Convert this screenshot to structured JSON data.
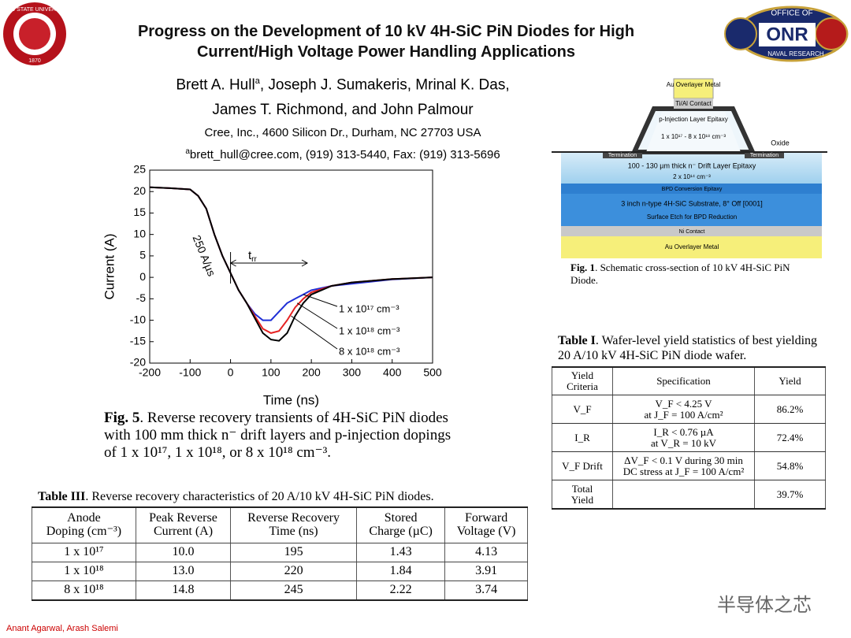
{
  "header": {
    "title": [
      "Progress on the Development of 10 kV 4H-SiC PiN Diodes for High",
      "Current/High Voltage Power Handling Applications"
    ],
    "authors_line1": [
      "Brett A. Hull",
      "a",
      ", Joseph J. Sumakeris, Mrinal K. Das,"
    ],
    "authors_line2": "James T. Richmond, and John Palmour",
    "affiliation": "Cree, Inc., 4600 Silicon Dr., Durham, NC 27703 USA",
    "email": [
      "a",
      "brett_hull@cree.com, (919) 313-5440, Fax: (919) 313-5696"
    ]
  },
  "logos": {
    "left": [
      "OHIO STATE UNIVERSITY",
      "1870"
    ],
    "right": [
      "OFFICE OF",
      "ONR",
      "NAVAL RESEARCH"
    ]
  },
  "chart_data": {
    "type": "line",
    "xlabel": "Time (ns)",
    "ylabel": "Current (A)",
    "x": [
      -200,
      -150,
      -100,
      -80,
      -60,
      -40,
      -20,
      0,
      20,
      40,
      60,
      80,
      100,
      120,
      140,
      160,
      180,
      200,
      250,
      300,
      400,
      500
    ],
    "series": [
      {
        "name": "1 x 10¹⁷ cm⁻³",
        "color": "#1f2fd6",
        "values": [
          21,
          20.8,
          20.5,
          19,
          16,
          10,
          5,
          1,
          -3,
          -6,
          -8.5,
          -10,
          -10,
          -8,
          -6,
          -5,
          -4,
          -3,
          -2,
          -1.5,
          -0.5,
          0
        ]
      },
      {
        "name": "1 x 10¹⁸ cm⁻³",
        "color": "#e52222",
        "values": [
          21,
          20.8,
          20.5,
          19,
          16,
          10,
          5,
          1,
          -3,
          -6,
          -9,
          -12,
          -13,
          -12.5,
          -10,
          -7,
          -5,
          -3.5,
          -2,
          -1.2,
          -0.4,
          0
        ]
      },
      {
        "name": "8 x 10¹⁸ cm⁻³",
        "color": "#000000",
        "values": [
          21,
          20.8,
          20.5,
          19,
          16,
          10,
          5,
          1,
          -3,
          -6,
          -9.5,
          -13,
          -14.5,
          -14.8,
          -13,
          -9,
          -6,
          -4,
          -2,
          -1.2,
          -0.4,
          0
        ]
      }
    ],
    "xlim": [
      -200,
      500
    ],
    "ylim": [
      -20,
      25
    ],
    "xticks": [
      -200,
      -100,
      0,
      100,
      200,
      300,
      400,
      500
    ],
    "yticks": [
      -20,
      -15,
      -10,
      -5,
      0,
      5,
      10,
      15,
      20,
      25
    ],
    "annotations": {
      "slope": "250 A/µs",
      "trr": [
        "t",
        "rr"
      ]
    }
  },
  "fig5_caption": [
    "Fig. 5",
    ". Reverse recovery transients of 4H-SiC PiN diodes with 100 mm thick n⁻ drift layers and p-injection dopings of 1 x 10¹⁷, 1 x 10¹⁸, or 8 x 10¹⁸ cm⁻³."
  ],
  "diagram": {
    "layers": [
      "Au Overlayer Metal",
      "Ti/Al Contact",
      "p-Injection Layer Epitaxy",
      "1 x 10¹⁷ - 8 x 10¹⁸ cm⁻³",
      "Oxide",
      "Termination",
      "Termination",
      "100 - 130 µm thick n⁻ Drift Layer Epitaxy",
      "2 x 10¹⁴ cm⁻³",
      "BPD Conversion Epitaxy",
      "3 inch n-type 4H-SiC Substrate, 8° Off [0001]",
      "Surface Etch for BPD Reduction",
      "Ni Contact",
      "Au Overlayer Metal"
    ],
    "caption": [
      "Fig. 1",
      ". Schematic cross-section of 10 kV 4H-SiC PiN Diode."
    ]
  },
  "table1": {
    "title": [
      "Table I",
      ". Wafer-level yield statistics of best yielding 20 A/10 kV 4H-SiC PiN diode wafer."
    ],
    "header": [
      [
        "Yield",
        "Criteria"
      ],
      [
        "Specification"
      ],
      [
        "Yield"
      ]
    ],
    "rows": [
      [
        [
          "V_F"
        ],
        [
          "V_F < 4.25 V",
          "at J_F = 100 A/cm²"
        ],
        [
          "86.2%"
        ]
      ],
      [
        [
          "I_R"
        ],
        [
          "I_R < 0.76 µA",
          "at V_R = 10 kV"
        ],
        [
          "72.4%"
        ]
      ],
      [
        [
          "V_F Drift"
        ],
        [
          "ΔV_F < 0.1 V during 30 min",
          "DC stress at J_F = 100 A/cm²"
        ],
        [
          "54.8%"
        ]
      ],
      [
        [
          "Total",
          "Yield"
        ],
        [],
        [
          "39.7%"
        ]
      ]
    ]
  },
  "table3": {
    "title": [
      "Table III",
      ". Reverse recovery characteristics of 20 A/10 kV 4H-SiC PiN diodes."
    ],
    "header": [
      [
        "Anode",
        "Doping (cm⁻³)"
      ],
      [
        "Peak Reverse",
        "Current (A)"
      ],
      [
        "Reverse Recovery",
        "Time (ns)"
      ],
      [
        "Stored",
        "Charge (µC)"
      ],
      [
        "Forward",
        "Voltage (V)"
      ]
    ],
    "rows": [
      [
        "1 x 10¹⁷",
        "10.0",
        "195",
        "1.43",
        "4.13"
      ],
      [
        "1 x 10¹⁸",
        "13.0",
        "220",
        "1.84",
        "3.91"
      ],
      [
        "8 x 10¹⁸",
        "14.8",
        "245",
        "2.22",
        "3.74"
      ]
    ]
  },
  "watermark": "半导体之芯",
  "footer": "Anant Agarwal, Arash Salemi"
}
